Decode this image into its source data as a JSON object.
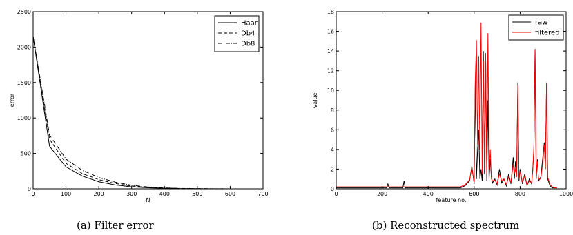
{
  "chart_data": [
    {
      "type": "line",
      "caption": "(a) Filter error",
      "xlabel": "N",
      "ylabel": "error",
      "xlim": [
        0,
        700
      ],
      "ylim": [
        0,
        2500
      ],
      "xticks": [
        "0",
        "100",
        "200",
        "300",
        "400",
        "500",
        "600",
        "700"
      ],
      "yticks": [
        "0",
        "500",
        "1000",
        "1500",
        "2000",
        "2500"
      ],
      "grid": false,
      "legend": "top-right",
      "series": [
        {
          "name": "Haar",
          "style": "solid",
          "color": "#000000",
          "x": [
            0,
            50,
            100,
            150,
            200,
            250,
            300,
            350,
            400,
            450,
            500,
            550,
            600,
            650
          ],
          "y": [
            2150,
            600,
            310,
            180,
            100,
            55,
            28,
            14,
            7,
            3,
            1,
            0.5,
            0.2,
            0
          ]
        },
        {
          "name": "Db4",
          "style": "dashed",
          "color": "#000000",
          "x": [
            0,
            50,
            100,
            150,
            200,
            250,
            300,
            350,
            400,
            450,
            500,
            550,
            600,
            650
          ],
          "y": [
            2150,
            700,
            360,
            215,
            130,
            75,
            40,
            20,
            10,
            5,
            2,
            1,
            0.4,
            0
          ]
        },
        {
          "name": "Db8",
          "style": "dashdot",
          "color": "#000000",
          "x": [
            0,
            50,
            100,
            150,
            200,
            250,
            300,
            350,
            400,
            450,
            500,
            550,
            600,
            650
          ],
          "y": [
            2150,
            760,
            420,
            260,
            160,
            95,
            50,
            26,
            13,
            6,
            3,
            1.5,
            0.5,
            0
          ]
        }
      ]
    },
    {
      "type": "line",
      "caption": "(b) Reconstructed spectrum",
      "xlabel": "feature no.",
      "ylabel": "value",
      "xlim": [
        0,
        1000
      ],
      "ylim": [
        0,
        18
      ],
      "xticks": [
        "0",
        "200",
        "400",
        "600",
        "800",
        "1000"
      ],
      "yticks": [
        "0",
        "2",
        "4",
        "6",
        "8",
        "10",
        "12",
        "14",
        "16",
        "18"
      ],
      "grid": false,
      "legend": "top-right",
      "series": [
        {
          "name": "raw",
          "color": "#000000",
          "x": [
            0,
            220,
            225,
            230,
            290,
            295,
            300,
            540,
            560,
            580,
            590,
            600,
            605,
            610,
            615,
            620,
            625,
            630,
            635,
            640,
            645,
            650,
            655,
            660,
            665,
            670,
            675,
            680,
            690,
            700,
            710,
            720,
            730,
            740,
            750,
            760,
            770,
            775,
            780,
            785,
            790,
            795,
            800,
            810,
            820,
            830,
            840,
            850,
            855,
            860,
            865,
            870,
            875,
            880,
            890,
            900,
            905,
            910,
            915,
            920,
            930,
            940,
            950,
            955,
            960
          ],
          "y": [
            0.1,
            0.1,
            0.5,
            0.1,
            0.1,
            0.8,
            0.1,
            0.1,
            0.3,
            0.8,
            2.3,
            0.5,
            11.0,
            1.0,
            4.0,
            6.0,
            1.0,
            2.0,
            0.8,
            14.0,
            1.5,
            13.5,
            0.8,
            9.0,
            1.0,
            3.0,
            1.2,
            0.6,
            1.0,
            0.4,
            2.0,
            0.6,
            1.0,
            0.3,
            1.5,
            0.5,
            3.2,
            1.0,
            2.8,
            1.5,
            10.8,
            0.8,
            2.0,
            0.5,
            1.5,
            0.3,
            1.0,
            0.5,
            2.0,
            4.0,
            14.2,
            1.0,
            3.0,
            0.8,
            1.2,
            3.5,
            4.7,
            2.0,
            10.7,
            1.0,
            0.3,
            0.1,
            0.1,
            0.1,
            0.1
          ]
        },
        {
          "name": "filtered",
          "color": "#ff0000",
          "x": [
            0,
            540,
            560,
            580,
            590,
            600,
            605,
            610,
            615,
            620,
            625,
            630,
            635,
            640,
            645,
            650,
            655,
            660,
            665,
            670,
            675,
            680,
            690,
            700,
            710,
            720,
            730,
            740,
            750,
            760,
            770,
            775,
            780,
            785,
            790,
            795,
            800,
            810,
            820,
            830,
            840,
            850,
            855,
            860,
            865,
            870,
            875,
            880,
            890,
            900,
            905,
            910,
            915,
            920,
            930,
            940,
            950,
            960
          ],
          "y": [
            0.2,
            0.2,
            0.4,
            0.9,
            2.1,
            0.7,
            11.2,
            15.1,
            4.5,
            13.5,
            4.0,
            16.9,
            1.5,
            13.0,
            2.0,
            13.8,
            1.5,
            15.8,
            2.0,
            4.0,
            1.0,
            0.8,
            0.9,
            0.5,
            1.5,
            0.8,
            1.0,
            0.4,
            1.2,
            0.6,
            2.5,
            1.5,
            2.0,
            1.2,
            10.5,
            1.0,
            1.8,
            0.7,
            1.3,
            0.4,
            0.8,
            0.6,
            1.8,
            4.3,
            14.2,
            1.5,
            2.8,
            1.0,
            1.0,
            3.0,
            4.5,
            2.2,
            10.8,
            1.2,
            0.4,
            0.2,
            0.1,
            0.1
          ]
        }
      ]
    }
  ]
}
